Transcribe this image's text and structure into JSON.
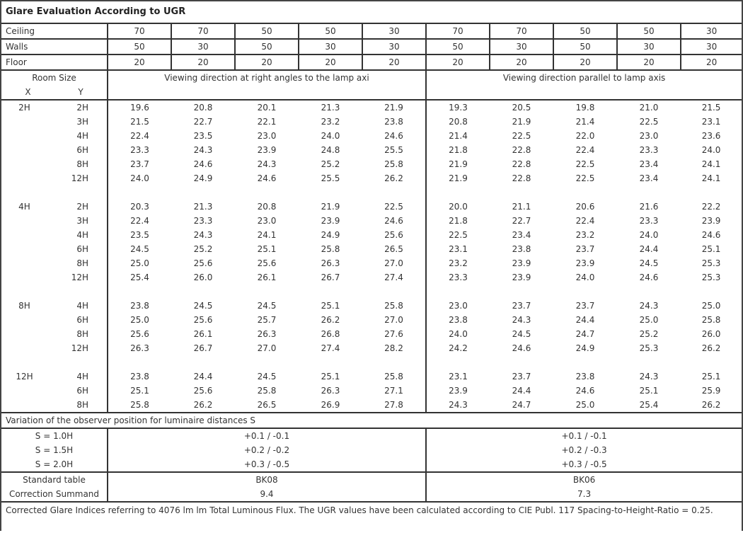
{
  "title": "Glare Evaluation According to UGR",
  "reflectances": [
    {
      "label": "Ceiling",
      "values": [
        "70",
        "70",
        "50",
        "50",
        "30",
        "70",
        "70",
        "50",
        "50",
        "30"
      ]
    },
    {
      "label": "Walls",
      "values": [
        "50",
        "30",
        "50",
        "30",
        "30",
        "50",
        "30",
        "50",
        "30",
        "30"
      ]
    },
    {
      "label": "Floor",
      "values": [
        "20",
        "20",
        "20",
        "20",
        "20",
        "20",
        "20",
        "20",
        "20",
        "20"
      ]
    }
  ],
  "header": {
    "room_size": "Room Size",
    "x": "X",
    "y": "Y",
    "right_angles": "Viewing direction at right angles to the lamp axi",
    "parallel": "Viewing direction parallel to lamp axis"
  },
  "groups": [
    {
      "x": "2H",
      "rows": [
        {
          "y": "2H",
          "values": [
            "19.6",
            "20.8",
            "20.1",
            "21.3",
            "21.9",
            "19.3",
            "20.5",
            "19.8",
            "21.0",
            "21.5"
          ]
        },
        {
          "y": "3H",
          "values": [
            "21.5",
            "22.7",
            "22.1",
            "23.2",
            "23.8",
            "20.8",
            "21.9",
            "21.4",
            "22.5",
            "23.1"
          ]
        },
        {
          "y": "4H",
          "values": [
            "22.4",
            "23.5",
            "23.0",
            "24.0",
            "24.6",
            "21.4",
            "22.5",
            "22.0",
            "23.0",
            "23.6"
          ]
        },
        {
          "y": "6H",
          "values": [
            "23.3",
            "24.3",
            "23.9",
            "24.8",
            "25.5",
            "21.8",
            "22.8",
            "22.4",
            "23.3",
            "24.0"
          ]
        },
        {
          "y": "8H",
          "values": [
            "23.7",
            "24.6",
            "24.3",
            "25.2",
            "25.8",
            "21.9",
            "22.8",
            "22.5",
            "23.4",
            "24.1"
          ]
        },
        {
          "y": "12H",
          "values": [
            "24.0",
            "24.9",
            "24.6",
            "25.5",
            "26.2",
            "21.9",
            "22.8",
            "22.5",
            "23.4",
            "24.1"
          ]
        }
      ]
    },
    {
      "x": "4H",
      "rows": [
        {
          "y": "2H",
          "values": [
            "20.3",
            "21.3",
            "20.8",
            "21.9",
            "22.5",
            "20.0",
            "21.1",
            "20.6",
            "21.6",
            "22.2"
          ]
        },
        {
          "y": "3H",
          "values": [
            "22.4",
            "23.3",
            "23.0",
            "23.9",
            "24.6",
            "21.8",
            "22.7",
            "22.4",
            "23.3",
            "23.9"
          ]
        },
        {
          "y": "4H",
          "values": [
            "23.5",
            "24.3",
            "24.1",
            "24.9",
            "25.6",
            "22.5",
            "23.4",
            "23.2",
            "24.0",
            "24.6"
          ]
        },
        {
          "y": "6H",
          "values": [
            "24.5",
            "25.2",
            "25.1",
            "25.8",
            "26.5",
            "23.1",
            "23.8",
            "23.7",
            "24.4",
            "25.1"
          ]
        },
        {
          "y": "8H",
          "values": [
            "25.0",
            "25.6",
            "25.6",
            "26.3",
            "27.0",
            "23.2",
            "23.9",
            "23.9",
            "24.5",
            "25.3"
          ]
        },
        {
          "y": "12H",
          "values": [
            "25.4",
            "26.0",
            "26.1",
            "26.7",
            "27.4",
            "23.3",
            "23.9",
            "24.0",
            "24.6",
            "25.3"
          ]
        }
      ]
    },
    {
      "x": "8H",
      "rows": [
        {
          "y": "4H",
          "values": [
            "23.8",
            "24.5",
            "24.5",
            "25.1",
            "25.8",
            "23.0",
            "23.7",
            "23.7",
            "24.3",
            "25.0"
          ]
        },
        {
          "y": "6H",
          "values": [
            "25.0",
            "25.6",
            "25.7",
            "26.2",
            "27.0",
            "23.8",
            "24.3",
            "24.4",
            "25.0",
            "25.8"
          ]
        },
        {
          "y": "8H",
          "values": [
            "25.6",
            "26.1",
            "26.3",
            "26.8",
            "27.6",
            "24.0",
            "24.5",
            "24.7",
            "25.2",
            "26.0"
          ]
        },
        {
          "y": "12H",
          "values": [
            "26.3",
            "26.7",
            "27.0",
            "27.4",
            "28.2",
            "24.2",
            "24.6",
            "24.9",
            "25.3",
            "26.2"
          ]
        }
      ]
    },
    {
      "x": "12H",
      "rows": [
        {
          "y": "4H",
          "values": [
            "23.8",
            "24.4",
            "24.5",
            "25.1",
            "25.8",
            "23.1",
            "23.7",
            "23.8",
            "24.3",
            "25.1"
          ]
        },
        {
          "y": "6H",
          "values": [
            "25.1",
            "25.6",
            "25.8",
            "26.3",
            "27.1",
            "23.9",
            "24.4",
            "24.6",
            "25.1",
            "25.9"
          ]
        },
        {
          "y": "8H",
          "values": [
            "25.8",
            "26.2",
            "26.5",
            "26.9",
            "27.8",
            "24.3",
            "24.7",
            "25.0",
            "25.4",
            "26.2"
          ]
        }
      ]
    }
  ],
  "variation": {
    "title": "Variation of the observer position for luminaire distances S",
    "rows": [
      {
        "label": "S = 1.0H",
        "right_angles": "+0.1 / -0.1",
        "parallel": "+0.1 / -0.1"
      },
      {
        "label": "S = 1.5H",
        "right_angles": "+0.2 / -0.2",
        "parallel": "+0.2 / -0.3"
      },
      {
        "label": "S = 2.0H",
        "right_angles": "+0.3 / -0.5",
        "parallel": "+0.3 / -0.5"
      }
    ]
  },
  "standard": [
    {
      "label": "Standard table",
      "right_angles": "BK08",
      "parallel": "BK06"
    },
    {
      "label": "Correction Summand",
      "right_angles": "9.4",
      "parallel": "7.3"
    }
  ],
  "footer": "Corrected Glare Indices referring to 4076 lm lm Total Luminous Flux. The UGR values have been calculated according to CIE Publ. 117    Spacing-to-Height-Ratio = 0.25."
}
